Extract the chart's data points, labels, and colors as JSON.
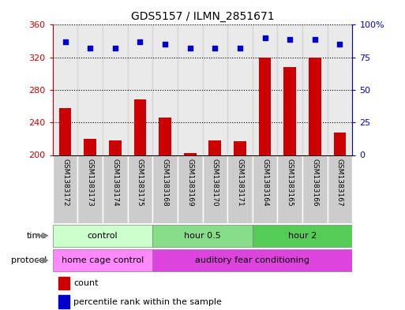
{
  "title": "GDS5157 / ILMN_2851671",
  "samples": [
    "GSM1383172",
    "GSM1383173",
    "GSM1383174",
    "GSM1383175",
    "GSM1383168",
    "GSM1383169",
    "GSM1383170",
    "GSM1383171",
    "GSM1383164",
    "GSM1383165",
    "GSM1383166",
    "GSM1383167"
  ],
  "counts": [
    258,
    220,
    218,
    268,
    246,
    202,
    218,
    217,
    320,
    308,
    320,
    228
  ],
  "percentiles": [
    87,
    82,
    82,
    87,
    85,
    82,
    82,
    82,
    90,
    89,
    89,
    85
  ],
  "ylim_left": [
    200,
    360
  ],
  "ylim_right": [
    0,
    100
  ],
  "yticks_left": [
    200,
    240,
    280,
    320,
    360
  ],
  "yticks_right": [
    0,
    25,
    50,
    75,
    100
  ],
  "bar_color": "#cc0000",
  "dot_color": "#0000cc",
  "time_groups": [
    {
      "label": "control",
      "start": 0,
      "end": 4,
      "color": "#ccffcc"
    },
    {
      "label": "hour 0.5",
      "start": 4,
      "end": 8,
      "color": "#88dd88"
    },
    {
      "label": "hour 2",
      "start": 8,
      "end": 12,
      "color": "#55cc55"
    }
  ],
  "protocol_groups": [
    {
      "label": "home cage control",
      "start": 0,
      "end": 4,
      "color": "#ff88ff"
    },
    {
      "label": "auditory fear conditioning",
      "start": 4,
      "end": 12,
      "color": "#dd44dd"
    }
  ],
  "time_label": "time",
  "protocol_label": "protocol",
  "legend_count_label": "count",
  "legend_pct_label": "percentile rank within the sample",
  "bg_color": "#ffffff",
  "tick_label_color_left": "#cc0000",
  "tick_label_color_right": "#0000cc",
  "col_bg": "#cccccc"
}
